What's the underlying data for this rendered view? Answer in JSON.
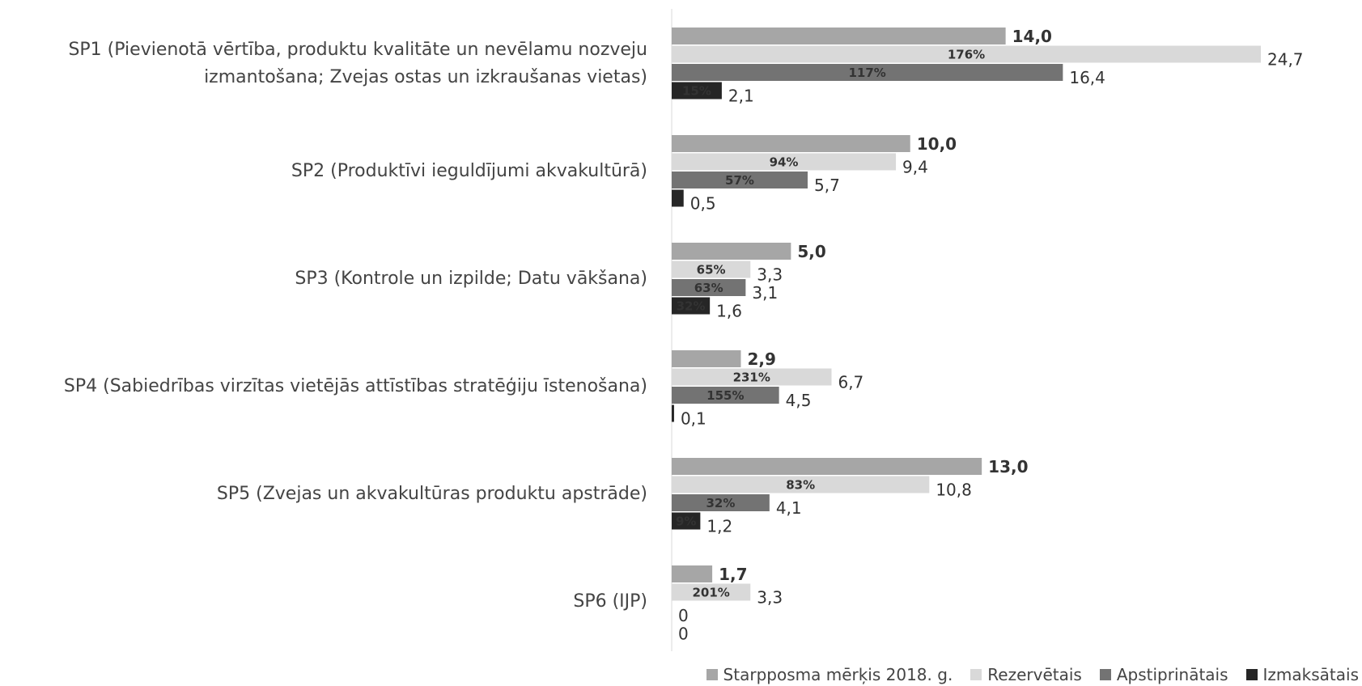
{
  "chart_data": {
    "type": "bar",
    "orientation": "horizontal",
    "categories": [
      "SP1 (Pievienotā vērtība, produktu kvalitāte un nevēlamu nozveju izmantošana; Zvejas ostas un izkraušanas vietas)",
      "SP2 (Produktīvi ieguldījumi akvakultūrā)",
      "SP3 (Kontrole un izpilde; Datu vākšana)",
      "SP4 (Sabiedrības virzītas vietējās attīstības stratēģiju īstenošana)",
      "SP5 (Zvejas un akvakultūras produktu apstrāde)",
      "SP6 (IJP)"
    ],
    "series": [
      {
        "name": "Starpposma mērķis 2018. g.",
        "color": "#a6a6a6",
        "values": [
          14.0,
          10.0,
          5.0,
          2.9,
          13.0,
          1.7
        ],
        "value_labels": [
          "14,0",
          "10,0",
          "5,0",
          "2,9",
          "13,0",
          "1,7"
        ]
      },
      {
        "name": "Rezervētais",
        "color": "#d9d9d9",
        "values": [
          24.7,
          9.4,
          3.3,
          6.7,
          10.8,
          3.3
        ],
        "value_labels": [
          "24,7",
          "9,4",
          "3,3",
          "6,7",
          "10,8",
          "3,3"
        ],
        "share_labels": [
          "176%",
          "94%",
          "65%",
          "231%",
          "83%",
          "201%"
        ]
      },
      {
        "name": "Apstiprinātais",
        "color": "#737373",
        "values": [
          16.4,
          5.7,
          3.1,
          4.5,
          4.1,
          0
        ],
        "value_labels": [
          "16,4",
          "5,7",
          "3,1",
          "4,5",
          "4,1",
          "0"
        ],
        "share_labels": [
          "117%",
          "57%",
          "63%",
          "155%",
          "32%",
          null
        ]
      },
      {
        "name": "Izmaksātais",
        "color": "#262626",
        "values": [
          2.1,
          0.5,
          1.6,
          0.1,
          1.2,
          0
        ],
        "value_labels": [
          "2,1",
          "0,5",
          "1,6",
          "0,1",
          "1,2",
          "0"
        ],
        "share_labels": [
          "15%",
          null,
          "32%",
          null,
          "9%",
          null
        ]
      }
    ],
    "legend": "bottom-right"
  }
}
